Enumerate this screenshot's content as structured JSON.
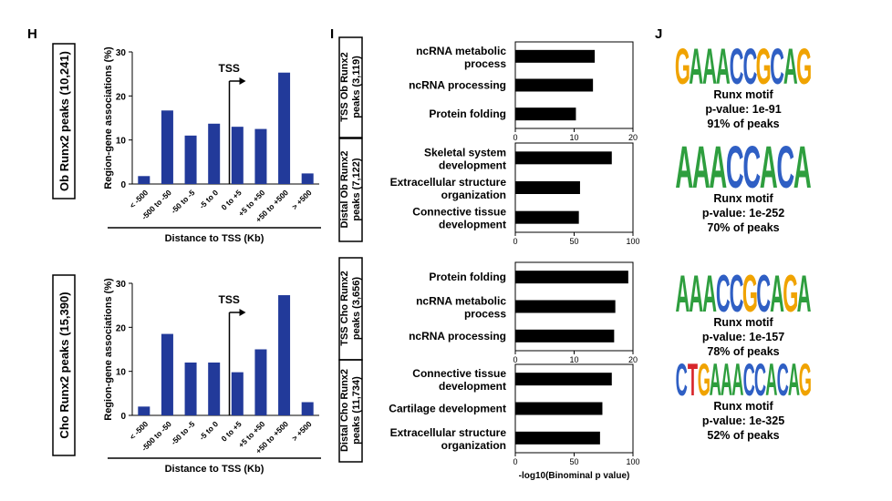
{
  "panel_labels": {
    "h": "H",
    "i": "I",
    "j": "J"
  },
  "panel_h": {
    "ylabel": "Region-gene associations (%)",
    "xlabel": "Distance to TSS (Kb)",
    "tss_label": "TSS",
    "categories": [
      "< -500",
      "-500 to -50",
      "-50 to -5",
      "-5 to 0",
      "0 to +5",
      "+5 to +50",
      "+50 to +500",
      "> +500"
    ],
    "y_ticks": [
      "0",
      "10",
      "20",
      "30"
    ]
  },
  "panel_i": {
    "xlabel": "-log10(Binominal p value)",
    "top_ticks": [
      "0",
      "10",
      "20"
    ],
    "distal_ticks": [
      "0",
      "50",
      "100"
    ]
  },
  "chart_data": [
    {
      "type": "bar",
      "row_label": "Ob Runx2 peaks (10,241)",
      "categories": [
        "< -500",
        "-500 to -50",
        "-50 to -5",
        "-5 to 0",
        "0 to +5",
        "+5 to +50",
        "+50 to +500",
        "> +500"
      ],
      "values": [
        1.8,
        16.7,
        11.0,
        13.7,
        13.0,
        12.5,
        25.3,
        2.4
      ],
      "ylabel": "Region-gene associations (%)",
      "xlabel": "Distance to TSS (Kb)",
      "ylim": [
        0,
        30
      ],
      "color": "#223a9a"
    },
    {
      "type": "bar",
      "row_label": "Cho Runx2 peaks (15,390)",
      "categories": [
        "< -500",
        "-500 to -50",
        "-50 to -5",
        "-5 to 0",
        "0 to +5",
        "+5 to +50",
        "+50 to +500",
        "> +500"
      ],
      "values": [
        2.0,
        18.5,
        12.0,
        12.0,
        9.8,
        15.0,
        27.3,
        3.0
      ],
      "ylabel": "Region-gene associations (%)",
      "xlabel": "Distance to TSS (Kb)",
      "ylim": [
        0,
        30
      ],
      "color": "#223a9a"
    },
    {
      "type": "bar",
      "orientation": "horizontal",
      "row_label": "TSS Ob Runx2 peaks (3,119)",
      "categories": [
        "ncRNA metabolic process",
        "ncRNA processing",
        "Protein folding"
      ],
      "values": [
        13.5,
        13.2,
        10.3
      ],
      "xlim": [
        0,
        20
      ],
      "color": "#000000"
    },
    {
      "type": "bar",
      "orientation": "horizontal",
      "row_label": "Distal Ob Runx2 peaks (7,122)",
      "categories": [
        "Skeletal system development",
        "Extracellular structure organization",
        "Connective tissue development"
      ],
      "values": [
        82,
        55,
        54
      ],
      "xlim": [
        0,
        100
      ],
      "color": "#000000"
    },
    {
      "type": "bar",
      "orientation": "horizontal",
      "row_label": "TSS Cho Runx2 peaks (3,656)",
      "categories": [
        "Protein folding",
        "ncRNA metabolic process",
        "ncRNA processing"
      ],
      "values": [
        19.2,
        17.0,
        16.8
      ],
      "xlim": [
        0,
        20
      ],
      "color": "#000000"
    },
    {
      "type": "bar",
      "orientation": "horizontal",
      "row_label": "Distal Cho Runx2 peaks (11,734)",
      "categories": [
        "Connective tissue development",
        "Cartilage development",
        "Extracellular structure organization"
      ],
      "values": [
        82,
        74,
        72
      ],
      "xlim": [
        0,
        100
      ],
      "xlabel": "-log10(Binominal p value)",
      "color": "#000000"
    }
  ],
  "row_labels": {
    "ob": "Ob Runx2 peaks (10,241)",
    "cho": "Cho Runx2 peaks (15,390)",
    "tss_ob": [
      "TSS Ob Runx2",
      "peaks (3,119)"
    ],
    "distal_ob": [
      "Distal Ob Runx2",
      "peaks (7,122)"
    ],
    "tss_cho": [
      "TSS Cho Runx2",
      "peaks (3,656)"
    ],
    "distal_cho": [
      "Distal Cho Runx2",
      "peaks (11,734)"
    ]
  },
  "go_terms": {
    "tss_ob": [
      [
        "ncRNA metabolic",
        "process"
      ],
      [
        "ncRNA processing"
      ],
      [
        "Protein folding"
      ]
    ],
    "distal_ob": [
      [
        "Skeletal system",
        "development"
      ],
      [
        "Extracellular structure",
        "organization"
      ],
      [
        "Connective tissue",
        "development"
      ]
    ],
    "tss_cho": [
      [
        "Protein folding"
      ],
      [
        "ncRNA metabolic",
        "process"
      ],
      [
        "ncRNA processing"
      ]
    ],
    "distal_cho": [
      [
        "Connective tissue",
        "development"
      ],
      [
        "Cartilage development"
      ],
      [
        "Extracellular structure",
        "organization"
      ]
    ]
  },
  "motifs": [
    {
      "sequence": "GAAACCGCAG",
      "title": "Runx motif",
      "pvalue": "p-value: 1e-91",
      "percent": "91% of peaks"
    },
    {
      "sequence": "AAACCACA",
      "title": "Runx motif",
      "pvalue": "p-value: 1e-252",
      "percent": "70% of peaks"
    },
    {
      "sequence": "AAACCGCAGA",
      "title": "Runx motif",
      "pvalue": "p-value: 1e-157",
      "percent": "78% of peaks"
    },
    {
      "sequence": "CTGAAACCACAG",
      "title": "Runx motif",
      "pvalue": "p-value: 1e-325",
      "percent": "52% of peaks"
    }
  ],
  "colors": {
    "bar_blue": "#223a9a",
    "A": "#2e9e3e",
    "C": "#2f5fc4",
    "G": "#f0a300",
    "T": "#d8262b"
  }
}
